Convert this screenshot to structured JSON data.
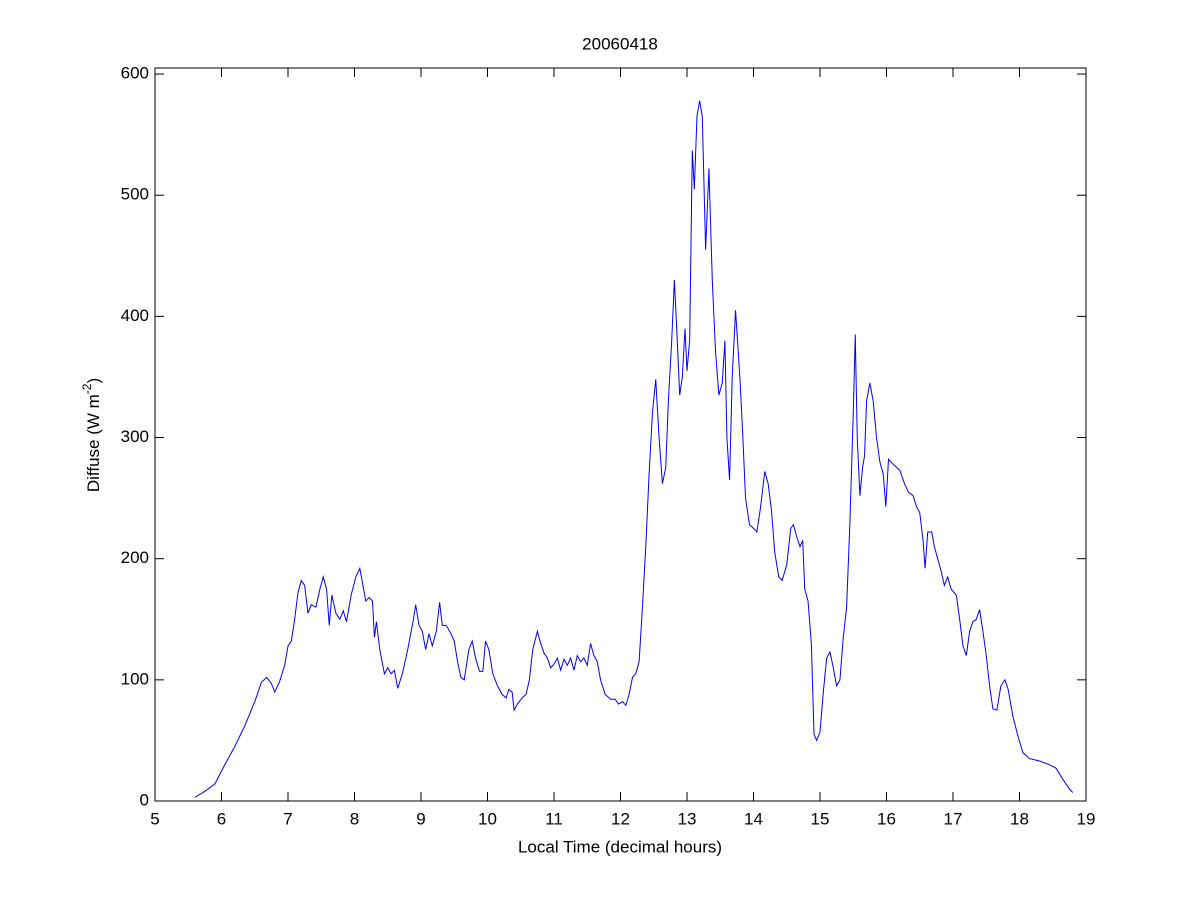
{
  "chart_data": {
    "type": "line",
    "title": "20060418",
    "xlabel": "Local Time (decimal hours)",
    "ylabel": [
      "Diffuse (W m",
      "-2",
      ")"
    ],
    "xlim": [
      5,
      19
    ],
    "xticks": [
      5,
      6,
      7,
      8,
      9,
      10,
      11,
      12,
      13,
      14,
      15,
      16,
      17,
      18,
      19
    ],
    "ylim": [
      0,
      605
    ],
    "yticks": [
      0,
      100,
      200,
      300,
      400,
      500,
      600
    ],
    "grid": false,
    "x": [
      5.6,
      5.75,
      5.9,
      6.05,
      6.2,
      6.35,
      6.5,
      6.6,
      6.68,
      6.75,
      6.8,
      6.87,
      6.95,
      7.0,
      7.05,
      7.1,
      7.15,
      7.2,
      7.25,
      7.3,
      7.35,
      7.42,
      7.48,
      7.53,
      7.58,
      7.62,
      7.66,
      7.72,
      7.78,
      7.83,
      7.88,
      7.95,
      8.02,
      8.08,
      8.12,
      8.17,
      8.22,
      8.27,
      8.3,
      8.33,
      8.38,
      8.45,
      8.5,
      8.55,
      8.6,
      8.65,
      8.72,
      8.8,
      8.88,
      8.92,
      8.97,
      9.02,
      9.07,
      9.12,
      9.17,
      9.23,
      9.28,
      9.32,
      9.38,
      9.45,
      9.5,
      9.55,
      9.6,
      9.65,
      9.72,
      9.77,
      9.82,
      9.88,
      9.93,
      9.97,
      10.02,
      10.08,
      10.15,
      10.22,
      10.28,
      10.32,
      10.37,
      10.4,
      10.45,
      10.52,
      10.58,
      10.63,
      10.68,
      10.75,
      10.8,
      10.85,
      10.9,
      10.95,
      11.0,
      11.05,
      11.1,
      11.15,
      11.2,
      11.25,
      11.3,
      11.35,
      11.4,
      11.45,
      11.5,
      11.55,
      11.6,
      11.65,
      11.7,
      11.77,
      11.85,
      11.92,
      11.97,
      12.03,
      12.08,
      12.13,
      12.18,
      12.23,
      12.28,
      12.33,
      12.38,
      12.43,
      12.48,
      12.53,
      12.58,
      12.63,
      12.68,
      12.72,
      12.77,
      12.81,
      12.85,
      12.89,
      12.93,
      12.97,
      13.0,
      13.04,
      13.08,
      13.11,
      13.15,
      13.19,
      13.23,
      13.28,
      13.33,
      13.38,
      13.43,
      13.48,
      13.53,
      13.57,
      13.6,
      13.64,
      13.68,
      13.73,
      13.76,
      13.8,
      13.84,
      13.88,
      13.94,
      14.0,
      14.05,
      14.1,
      14.17,
      14.22,
      14.27,
      14.32,
      14.38,
      14.43,
      14.5,
      14.56,
      14.6,
      14.65,
      14.7,
      14.74,
      14.77,
      14.82,
      14.87,
      14.91,
      14.95,
      15.0,
      15.05,
      15.1,
      15.15,
      15.2,
      15.25,
      15.3,
      15.35,
      15.4,
      15.45,
      15.5,
      15.53,
      15.56,
      15.6,
      15.64,
      15.67,
      15.7,
      15.75,
      15.8,
      15.85,
      15.9,
      15.95,
      15.99,
      16.03,
      16.1,
      16.2,
      16.27,
      16.33,
      16.4,
      16.45,
      16.5,
      16.55,
      16.58,
      16.62,
      16.68,
      16.72,
      16.77,
      16.82,
      16.87,
      16.92,
      16.97,
      17.05,
      17.1,
      17.15,
      17.2,
      17.25,
      17.3,
      17.35,
      17.4,
      17.45,
      17.5,
      17.55,
      17.6,
      17.66,
      17.72,
      17.78,
      17.83,
      17.9,
      17.97,
      18.05,
      18.15,
      18.3,
      18.45,
      18.55,
      18.65,
      18.75,
      18.8
    ],
    "series": [
      {
        "color": "#0000ff",
        "values": [
          3,
          8,
          14,
          30,
          45,
          62,
          82,
          98,
          102,
          97,
          90,
          98,
          112,
          128,
          132,
          150,
          172,
          182,
          178,
          155,
          162,
          160,
          175,
          185,
          175,
          145,
          170,
          155,
          150,
          157,
          148,
          170,
          185,
          192,
          180,
          165,
          168,
          165,
          135,
          148,
          125,
          105,
          110,
          105,
          108,
          93,
          105,
          125,
          148,
          162,
          145,
          140,
          125,
          138,
          128,
          140,
          164,
          145,
          145,
          138,
          132,
          115,
          102,
          100,
          125,
          132,
          118,
          107,
          107,
          132,
          125,
          105,
          95,
          88,
          85,
          92,
          90,
          75,
          80,
          85,
          88,
          100,
          125,
          140,
          130,
          122,
          118,
          110,
          113,
          118,
          108,
          117,
          112,
          118,
          108,
          120,
          115,
          118,
          112,
          130,
          120,
          115,
          100,
          88,
          84,
          84,
          80,
          82,
          79,
          88,
          102,
          105,
          115,
          160,
          210,
          270,
          320,
          348,
          300,
          262,
          275,
          330,
          380,
          430,
          385,
          335,
          350,
          390,
          355,
          380,
          537,
          505,
          565,
          578,
          565,
          455,
          522,
          430,
          370,
          335,
          345,
          380,
          300,
          265,
          350,
          405,
          380,
          345,
          300,
          250,
          228,
          225,
          222,
          240,
          272,
          262,
          240,
          205,
          185,
          182,
          195,
          225,
          228,
          218,
          210,
          215,
          175,
          165,
          130,
          55,
          50,
          57,
          90,
          118,
          123,
          110,
          95,
          100,
          135,
          160,
          230,
          320,
          385,
          300,
          252,
          275,
          285,
          330,
          345,
          330,
          300,
          280,
          270,
          243,
          282,
          278,
          273,
          262,
          255,
          252,
          243,
          238,
          215,
          192,
          222,
          222,
          210,
          200,
          190,
          178,
          185,
          175,
          170,
          150,
          128,
          120,
          140,
          148,
          150,
          158,
          140,
          120,
          95,
          76,
          75,
          95,
          100,
          92,
          70,
          55,
          40,
          35,
          33,
          30,
          27,
          18,
          10,
          7
        ]
      }
    ]
  }
}
